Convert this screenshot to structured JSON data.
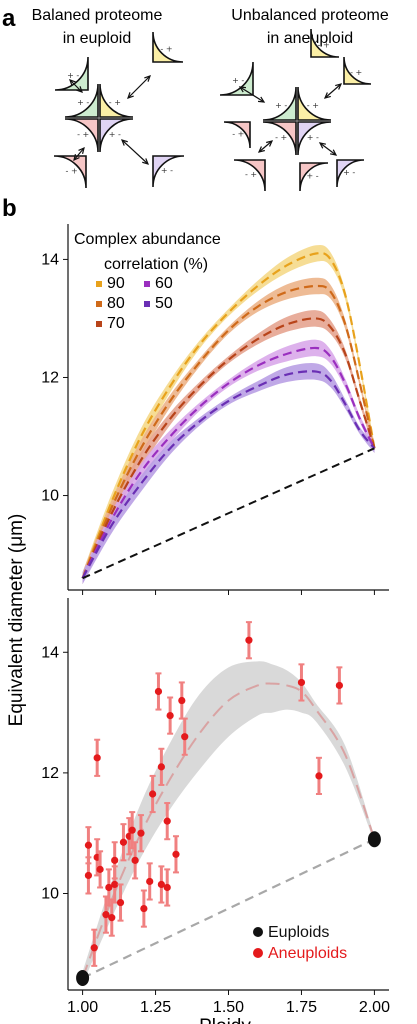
{
  "panel_a": {
    "letter": "a",
    "left_title": [
      "Balaned proteome",
      "in euploid"
    ],
    "right_title": [
      "Unbalanced proteome",
      "in aneuploid"
    ],
    "colors": {
      "green": "#cdeccf",
      "yellow": "#fbefa6",
      "red": "#f6c6c6",
      "purple": "#e0d4f4"
    }
  },
  "panel_b": {
    "letter": "b"
  },
  "ylabel": "Equivalent diameter (μm)",
  "xlabel": "Ploidy",
  "chart_data": [
    {
      "type": "line",
      "legend_title": [
        "Complex abundance",
        "correlation (%)"
      ],
      "xlim": [
        0.95,
        2.05
      ],
      "ylim": [
        8.4,
        14.6
      ],
      "yticks": [
        10,
        12,
        14
      ],
      "x": [
        1.0,
        1.1,
        1.2,
        1.3,
        1.4,
        1.5,
        1.6,
        1.7,
        1.8,
        1.85,
        1.9,
        1.95,
        2.0
      ],
      "series": [
        {
          "name": "90",
          "color": "#e8a21c",
          "band": "#f5d98a",
          "values": [
            8.6,
            9.9,
            11.0,
            11.85,
            12.55,
            13.1,
            13.55,
            13.9,
            14.1,
            14.0,
            13.4,
            12.2,
            10.8
          ]
        },
        {
          "name": "80",
          "color": "#cf6a1a",
          "band": "#ecb48a",
          "values": [
            8.6,
            9.8,
            10.8,
            11.6,
            12.25,
            12.8,
            13.2,
            13.45,
            13.55,
            13.45,
            12.9,
            11.9,
            10.8
          ]
        },
        {
          "name": "70",
          "color": "#b8441a",
          "band": "#e6a490",
          "values": [
            8.6,
            9.7,
            10.6,
            11.3,
            11.85,
            12.3,
            12.65,
            12.9,
            13.0,
            12.85,
            12.4,
            11.6,
            10.8
          ]
        },
        {
          "name": "60",
          "color": "#9a2fbf",
          "band": "#d9a8ea",
          "values": [
            8.6,
            9.6,
            10.4,
            11.0,
            11.5,
            11.9,
            12.2,
            12.4,
            12.5,
            12.35,
            11.9,
            11.3,
            10.8
          ]
        },
        {
          "name": "50",
          "color": "#6a2fb4",
          "band": "#b9a0e4",
          "values": [
            8.6,
            9.5,
            10.2,
            10.8,
            11.25,
            11.6,
            11.85,
            12.05,
            12.1,
            11.95,
            11.55,
            11.1,
            10.8
          ]
        }
      ],
      "baseline": {
        "x": [
          1.0,
          2.0
        ],
        "values": [
          8.6,
          10.8
        ],
        "color": "#111111",
        "dashed": true
      }
    },
    {
      "type": "scatter",
      "xlim": [
        0.95,
        2.05
      ],
      "ylim": [
        8.4,
        14.9
      ],
      "xticks": [
        "1.00",
        "1.25",
        "1.50",
        "1.75",
        "2.00"
      ],
      "yticks": [
        10,
        12,
        14
      ],
      "legend": [
        {
          "name": "Euploids",
          "color": "#111111"
        },
        {
          "name": "Aneuploids",
          "color": "#e41a1c"
        }
      ],
      "euploids": {
        "x": [
          1.0,
          2.0
        ],
        "y": [
          8.6,
          10.9
        ]
      },
      "aneuploids": {
        "x": [
          1.02,
          1.02,
          1.04,
          1.05,
          1.05,
          1.06,
          1.08,
          1.09,
          1.1,
          1.11,
          1.11,
          1.13,
          1.14,
          1.16,
          1.17,
          1.18,
          1.2,
          1.21,
          1.23,
          1.24,
          1.26,
          1.27,
          1.27,
          1.29,
          1.29,
          1.3,
          1.32,
          1.34,
          1.35,
          1.57,
          1.75,
          1.81,
          1.88
        ],
        "y": [
          10.8,
          10.3,
          9.1,
          12.25,
          10.6,
          10.4,
          9.65,
          10.1,
          9.6,
          10.55,
          10.15,
          9.85,
          10.85,
          10.95,
          11.05,
          10.55,
          11.0,
          9.75,
          10.2,
          11.65,
          13.35,
          12.1,
          10.15,
          10.1,
          11.2,
          12.95,
          10.65,
          13.2,
          12.6,
          14.2,
          13.5,
          11.95,
          13.45
        ],
        "err": 0.3
      },
      "fit": {
        "x": [
          1.0,
          1.1,
          1.2,
          1.3,
          1.4,
          1.5,
          1.6,
          1.65,
          1.7,
          1.75,
          1.8,
          1.9,
          2.0
        ],
        "y": [
          8.6,
          9.9,
          11.0,
          11.9,
          12.65,
          13.2,
          13.45,
          13.48,
          13.45,
          13.35,
          13.05,
          12.3,
          10.9
        ],
        "band_upper": [
          8.7,
          10.2,
          11.5,
          12.5,
          13.3,
          13.75,
          13.85,
          13.8,
          13.7,
          13.5,
          13.15,
          12.45,
          10.95
        ],
        "band_lower": [
          8.5,
          9.6,
          10.6,
          11.4,
          12.05,
          12.6,
          12.95,
          13.0,
          13.05,
          13.0,
          12.85,
          12.1,
          10.85
        ]
      },
      "baseline": {
        "x": [
          1.0,
          2.0
        ],
        "values": [
          8.6,
          10.9
        ],
        "color": "#a8a8a8",
        "dashed": true
      }
    }
  ]
}
